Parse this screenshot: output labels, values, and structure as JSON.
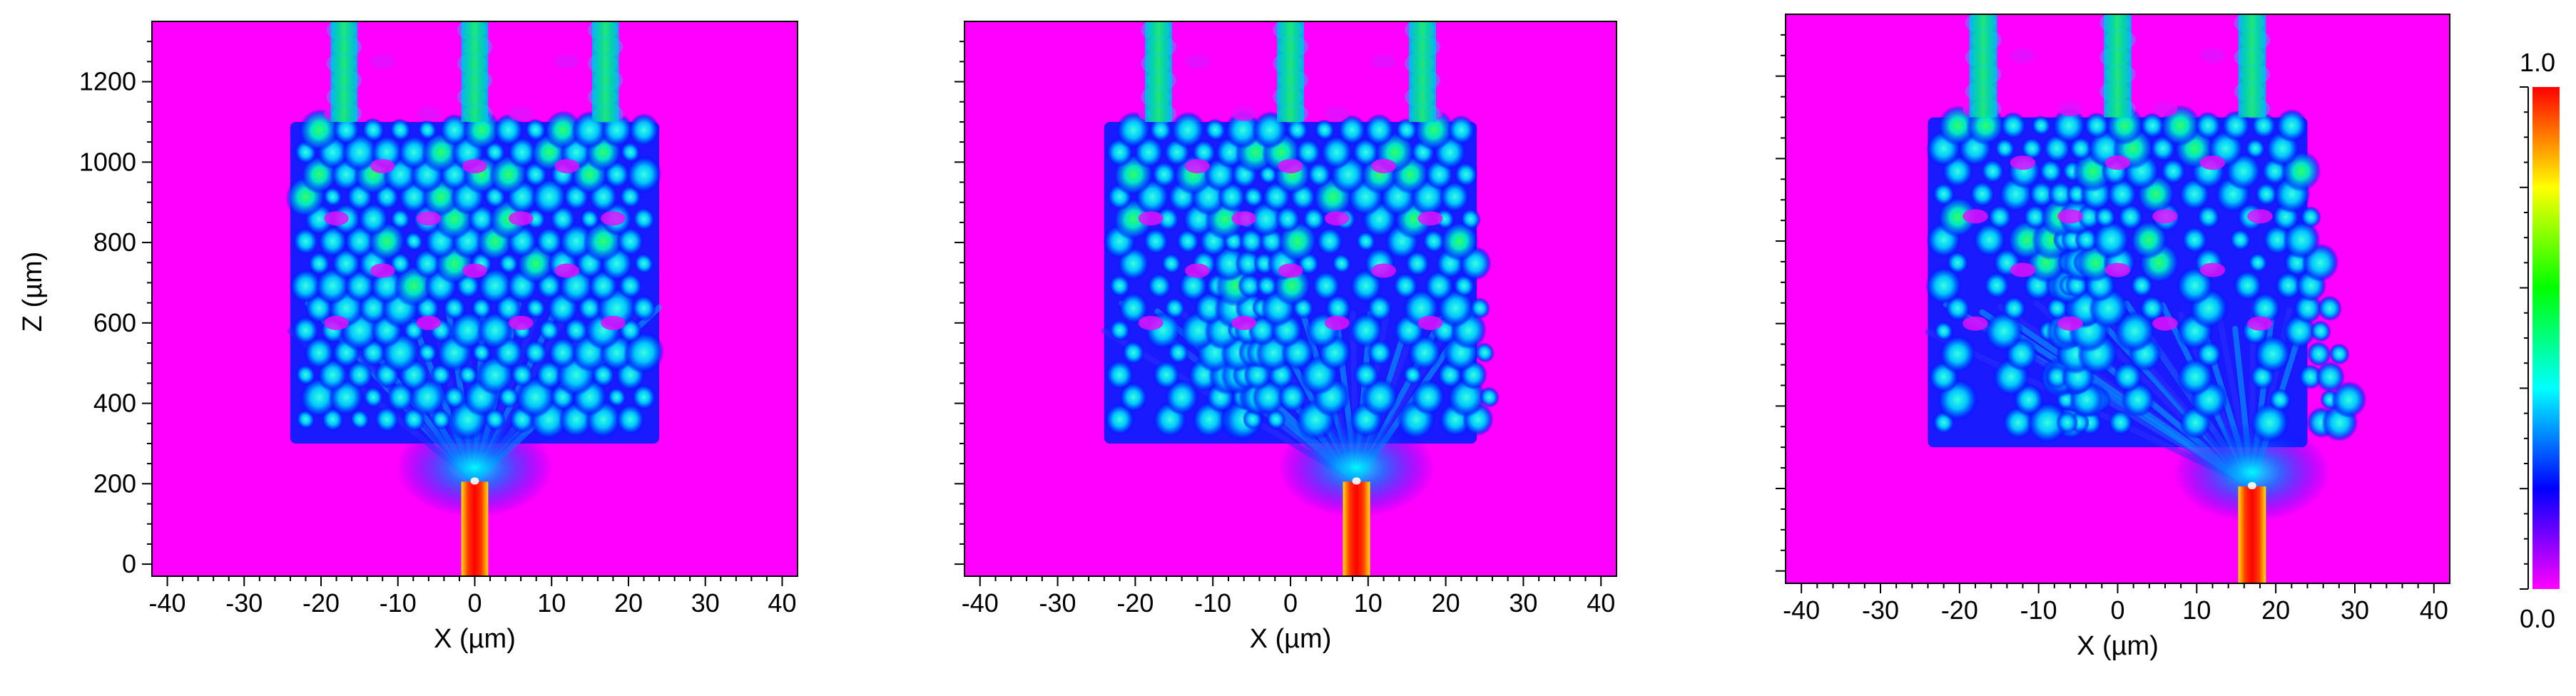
{
  "chart_data": [
    {
      "type": "heatmap",
      "panel": "left",
      "xlabel": "X (µm)",
      "ylabel": "Z (µm)",
      "xlim": [
        -42,
        42
      ],
      "ylim": [
        -30,
        1350
      ],
      "x_ticks": [
        -40,
        -30,
        -20,
        -10,
        0,
        10,
        20,
        30,
        40
      ],
      "y_ticks": [
        0,
        200,
        400,
        600,
        800,
        1000,
        1200
      ],
      "input_waveguide": {
        "x_center": 0,
        "width": 3.5,
        "z_start": 0,
        "z_end": 205
      },
      "array_region": {
        "x_min": -24,
        "x_max": 24,
        "z_min": 300,
        "z_max": 1100
      },
      "output_waveguides": [
        {
          "x_center": -17,
          "width": 3.5,
          "z_start": 1100,
          "z_end": 1350
        },
        {
          "x_center": 0,
          "width": 3.5,
          "z_start": 1100,
          "z_end": 1350
        },
        {
          "x_center": 17,
          "width": 3.5,
          "z_start": 1100,
          "z_end": 1350
        }
      ]
    },
    {
      "type": "heatmap",
      "panel": "middle",
      "xlabel": "X (µm)",
      "ylabel": "",
      "xlim": [
        -42,
        42
      ],
      "ylim": [
        -30,
        1350
      ],
      "x_ticks": [
        -40,
        -30,
        -20,
        -10,
        0,
        10,
        20,
        30,
        40
      ],
      "y_ticks": [
        0,
        200,
        400,
        600,
        800,
        1000,
        1200
      ],
      "input_waveguide": {
        "x_center": 8.5,
        "width": 3.5,
        "z_start": 0,
        "z_end": 205
      },
      "array_region": {
        "x_min": -24,
        "x_max": 24,
        "z_min": 300,
        "z_max": 1100
      },
      "output_waveguides": [
        {
          "x_center": -17,
          "width": 3.5,
          "z_start": 1100,
          "z_end": 1350
        },
        {
          "x_center": 0,
          "width": 3.5,
          "z_start": 1100,
          "z_end": 1350
        },
        {
          "x_center": 17,
          "width": 3.5,
          "z_start": 1100,
          "z_end": 1350
        }
      ]
    },
    {
      "type": "heatmap",
      "panel": "right",
      "xlabel": "X (µm)",
      "ylabel": "",
      "xlim": [
        -42,
        42
      ],
      "ylim": [
        -30,
        1350
      ],
      "x_ticks": [
        -40,
        -30,
        -20,
        -10,
        0,
        10,
        20,
        30,
        40
      ],
      "y_ticks": [
        0,
        200,
        400,
        600,
        800,
        1000,
        1200
      ],
      "input_waveguide": {
        "x_center": 17,
        "width": 3.5,
        "z_start": 0,
        "z_end": 205
      },
      "array_region": {
        "x_min": -24,
        "x_max": 24,
        "z_min": 300,
        "z_max": 1100
      },
      "output_waveguides": [
        {
          "x_center": -17,
          "width": 3.5,
          "z_start": 1100,
          "z_end": 1350
        },
        {
          "x_center": 0,
          "width": 3.5,
          "z_start": 1100,
          "z_end": 1350
        },
        {
          "x_center": 17,
          "width": 3.5,
          "z_start": 1100,
          "z_end": 1350
        }
      ]
    }
  ],
  "colorbar": {
    "max_label": "1.0",
    "min_label": "0.0",
    "min": 0.0,
    "max": 1.0,
    "colors": [
      "#ff00ff",
      "#0000ff",
      "#00ffff",
      "#00ff00",
      "#ffff00",
      "#ff0000"
    ]
  },
  "colors": {
    "background_field": "#ff00ff",
    "axis": "#000000"
  }
}
